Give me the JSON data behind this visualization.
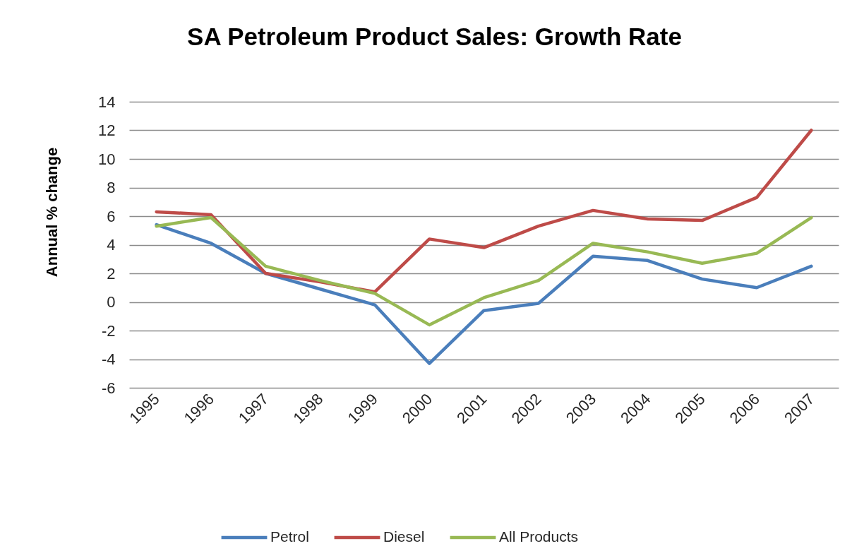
{
  "chart_data": {
    "type": "line",
    "title": "SA Petroleum Product Sales: Growth Rate",
    "ylabel": "Annual % change",
    "categories": [
      "1995",
      "1996",
      "1997",
      "1998",
      "1999",
      "2000",
      "2001",
      "2002",
      "2003",
      "2004",
      "2005",
      "2006",
      "2007"
    ],
    "series": [
      {
        "name": "Petrol",
        "color": "#4a7ebb",
        "values": [
          5.4,
          4.1,
          2.0,
          0.9,
          -0.2,
          -4.3,
          -0.6,
          -0.1,
          3.2,
          2.9,
          1.6,
          1.0,
          2.5
        ]
      },
      {
        "name": "Diesel",
        "color": "#be4b48",
        "values": [
          6.3,
          6.1,
          2.0,
          1.4,
          0.7,
          4.4,
          3.8,
          5.3,
          6.4,
          5.8,
          5.7,
          7.3,
          12.0
        ]
      },
      {
        "name": "All Products",
        "color": "#98b954",
        "values": [
          5.3,
          5.9,
          2.5,
          1.5,
          0.6,
          -1.6,
          0.3,
          1.5,
          4.1,
          3.5,
          2.7,
          3.4,
          5.9
        ]
      }
    ],
    "ylim": [
      -6,
      14
    ],
    "yticks": [
      -6,
      -4,
      -2,
      0,
      2,
      4,
      6,
      8,
      10,
      12,
      14
    ],
    "grid": "y",
    "legend": "bottom",
    "marker": "none",
    "line_style": "solid"
  }
}
